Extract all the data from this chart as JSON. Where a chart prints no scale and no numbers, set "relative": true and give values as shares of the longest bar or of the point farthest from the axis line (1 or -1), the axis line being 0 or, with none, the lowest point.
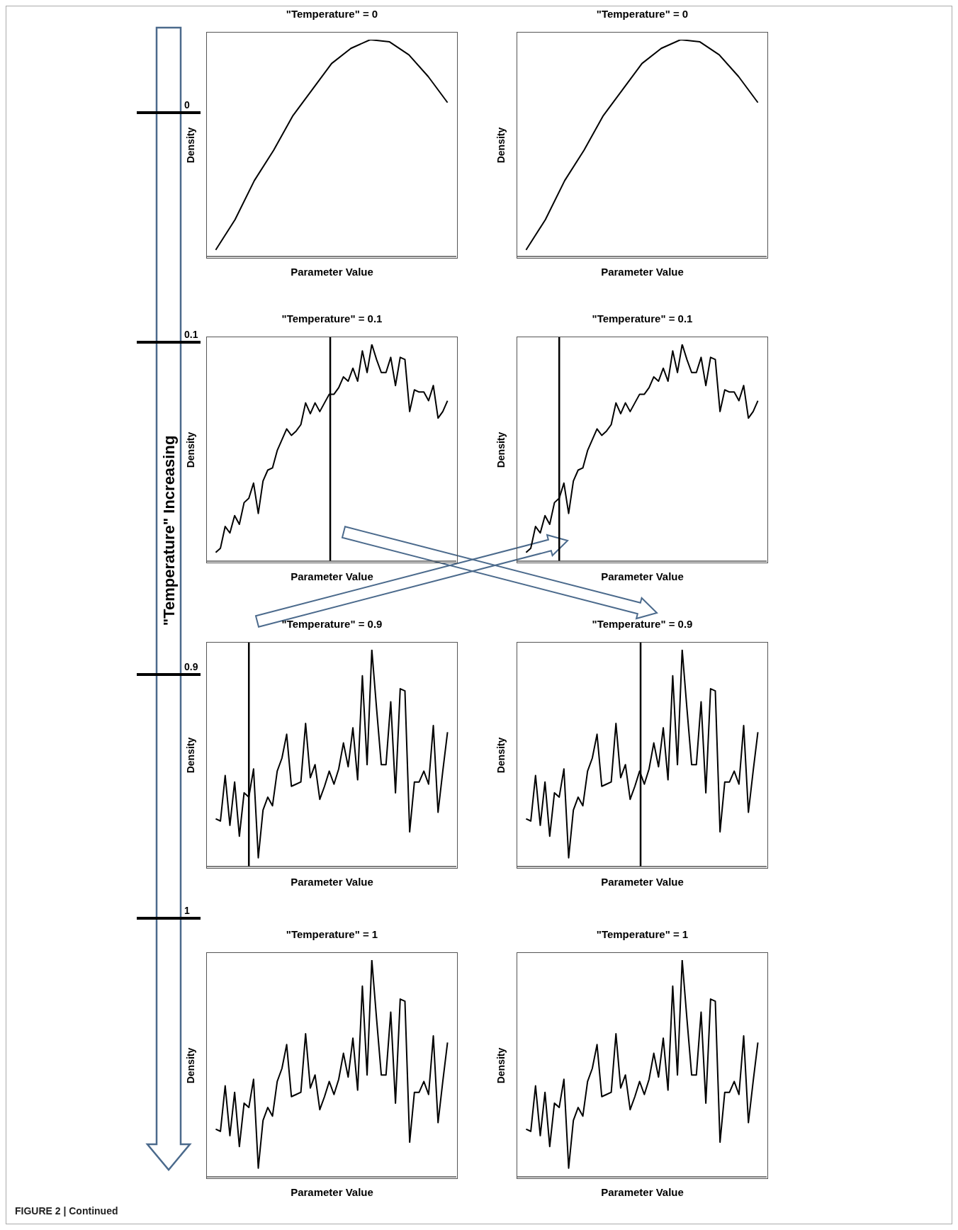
{
  "chart_data": [
    {
      "type": "other",
      "title": "\"Temperature\" Increasing",
      "annotations": [
        "0",
        "0.1",
        "0.9",
        "1",
        "FIGURE 2 | Continued"
      ]
    },
    {
      "type": "line",
      "title": "\"Temperature\" = 0",
      "xlabel": "Parameter Value",
      "ylabel": "Density",
      "relative": true,
      "categories": [
        null,
        null,
        null,
        null,
        null,
        null,
        null,
        null,
        null,
        null,
        null,
        null,
        null
      ],
      "series": [
        {
          "color": "#000000",
          "values": [
            0.03,
            0.17,
            0.35,
            0.49,
            0.65,
            0.77,
            0.89,
            0.96,
            1.0,
            0.99,
            0.93,
            0.83,
            0.71
          ]
        }
      ]
    },
    {
      "type": "line",
      "title": "\"Temperature\" = 0",
      "xlabel": "Parameter Value",
      "ylabel": "Density",
      "relative": true,
      "categories": [
        null,
        null,
        null,
        null,
        null,
        null,
        null,
        null,
        null,
        null,
        null,
        null,
        null
      ],
      "series": [
        {
          "color": "#000000",
          "values": [
            0.03,
            0.17,
            0.35,
            0.49,
            0.65,
            0.77,
            0.89,
            0.96,
            1.0,
            0.99,
            0.93,
            0.83,
            0.71
          ]
        }
      ]
    },
    {
      "type": "line",
      "title": "\"Temperature\" = 0.1",
      "xlabel": "Parameter Value",
      "ylabel": "Density",
      "relative": true,
      "categories": [
        null,
        null,
        null,
        null,
        null,
        null,
        null,
        null,
        null,
        null,
        null,
        null,
        null,
        null,
        null,
        null,
        null,
        null,
        null,
        null,
        null,
        null,
        null,
        null,
        null,
        null,
        null,
        null,
        null,
        null,
        null,
        null,
        null,
        null,
        null,
        null,
        null,
        null,
        null,
        null,
        null,
        null,
        null,
        null,
        null,
        null,
        null,
        null,
        null,
        null
      ],
      "series": [
        {
          "color": "#000000",
          "values": [
            0.04,
            0.06,
            0.16,
            0.13,
            0.21,
            0.17,
            0.27,
            0.29,
            0.36,
            0.22,
            0.37,
            0.42,
            0.43,
            0.51,
            0.56,
            0.61,
            0.58,
            0.6,
            0.63,
            0.73,
            0.68,
            0.73,
            0.69,
            0.73,
            0.77,
            0.77,
            0.8,
            0.85,
            0.83,
            0.89,
            0.83,
            0.97,
            0.87,
            1.0,
            0.93,
            0.87,
            0.87,
            0.94,
            0.81,
            0.94,
            0.93,
            0.69,
            0.79,
            0.78,
            0.78,
            0.74,
            0.81,
            0.66,
            0.69,
            0.74
          ]
        }
      ]
    },
    {
      "type": "line",
      "title": "\"Temperature\" = 0.1",
      "xlabel": "Parameter Value",
      "ylabel": "Density",
      "relative": true,
      "categories": [
        null,
        null,
        null,
        null,
        null,
        null,
        null,
        null,
        null,
        null,
        null,
        null,
        null,
        null,
        null,
        null,
        null,
        null,
        null,
        null,
        null,
        null,
        null,
        null,
        null,
        null,
        null,
        null,
        null,
        null,
        null,
        null,
        null,
        null,
        null,
        null,
        null,
        null,
        null,
        null,
        null,
        null,
        null,
        null,
        null,
        null,
        null,
        null,
        null,
        null
      ],
      "series": [
        {
          "color": "#000000",
          "values": [
            0.04,
            0.06,
            0.16,
            0.13,
            0.21,
            0.17,
            0.27,
            0.29,
            0.36,
            0.22,
            0.37,
            0.42,
            0.43,
            0.51,
            0.56,
            0.61,
            0.58,
            0.6,
            0.63,
            0.73,
            0.68,
            0.73,
            0.69,
            0.73,
            0.77,
            0.77,
            0.8,
            0.85,
            0.83,
            0.89,
            0.83,
            0.97,
            0.87,
            1.0,
            0.93,
            0.87,
            0.87,
            0.94,
            0.81,
            0.94,
            0.93,
            0.69,
            0.79,
            0.78,
            0.78,
            0.74,
            0.81,
            0.66,
            0.69,
            0.74
          ]
        }
      ]
    },
    {
      "type": "line",
      "title": "\"Temperature\" = 0.9",
      "xlabel": "Parameter Value",
      "ylabel": "Density",
      "relative": true,
      "categories": [
        null,
        null,
        null,
        null,
        null,
        null,
        null,
        null,
        null,
        null,
        null,
        null,
        null,
        null,
        null,
        null,
        null,
        null,
        null,
        null,
        null,
        null,
        null,
        null,
        null,
        null,
        null,
        null,
        null,
        null,
        null,
        null,
        null,
        null,
        null,
        null,
        null,
        null,
        null,
        null,
        null,
        null,
        null,
        null,
        null,
        null,
        null,
        null,
        null,
        null
      ],
      "series": [
        {
          "color": "#000000",
          "values": [
            0.22,
            0.21,
            0.42,
            0.19,
            0.39,
            0.14,
            0.34,
            0.32,
            0.45,
            0.04,
            0.26,
            0.32,
            0.28,
            0.44,
            0.5,
            0.61,
            0.37,
            0.38,
            0.39,
            0.66,
            0.41,
            0.47,
            0.31,
            0.37,
            0.44,
            0.38,
            0.45,
            0.57,
            0.46,
            0.64,
            0.4,
            0.88,
            0.47,
            1.0,
            0.73,
            0.47,
            0.47,
            0.76,
            0.34,
            0.82,
            0.81,
            0.16,
            0.39,
            0.39,
            0.44,
            0.38,
            0.65,
            0.25,
            0.44,
            0.62
          ]
        }
      ]
    },
    {
      "type": "line",
      "title": "\"Temperature\" = 0.9",
      "xlabel": "Parameter Value",
      "ylabel": "Density",
      "relative": true,
      "categories": [
        null,
        null,
        null,
        null,
        null,
        null,
        null,
        null,
        null,
        null,
        null,
        null,
        null,
        null,
        null,
        null,
        null,
        null,
        null,
        null,
        null,
        null,
        null,
        null,
        null,
        null,
        null,
        null,
        null,
        null,
        null,
        null,
        null,
        null,
        null,
        null,
        null,
        null,
        null,
        null,
        null,
        null,
        null,
        null,
        null,
        null,
        null,
        null,
        null,
        null
      ],
      "series": [
        {
          "color": "#000000",
          "values": [
            0.22,
            0.21,
            0.42,
            0.19,
            0.39,
            0.14,
            0.34,
            0.32,
            0.45,
            0.04,
            0.26,
            0.32,
            0.28,
            0.44,
            0.5,
            0.61,
            0.37,
            0.38,
            0.39,
            0.66,
            0.41,
            0.47,
            0.31,
            0.37,
            0.44,
            0.38,
            0.45,
            0.57,
            0.46,
            0.64,
            0.4,
            0.88,
            0.47,
            1.0,
            0.73,
            0.47,
            0.47,
            0.76,
            0.34,
            0.82,
            0.81,
            0.16,
            0.39,
            0.39,
            0.44,
            0.38,
            0.65,
            0.25,
            0.44,
            0.62
          ]
        }
      ]
    },
    {
      "type": "line",
      "title": "\"Temperature\" = 1",
      "xlabel": "Parameter Value",
      "ylabel": "Density",
      "relative": true,
      "categories": [
        null,
        null,
        null,
        null,
        null,
        null,
        null,
        null,
        null,
        null,
        null,
        null,
        null,
        null,
        null,
        null,
        null,
        null,
        null,
        null,
        null,
        null,
        null,
        null,
        null,
        null,
        null,
        null,
        null,
        null,
        null,
        null,
        null,
        null,
        null,
        null,
        null,
        null,
        null,
        null,
        null,
        null,
        null,
        null,
        null,
        null,
        null,
        null,
        null,
        null
      ],
      "series": [
        {
          "color": "#000000",
          "values": [
            0.22,
            0.21,
            0.42,
            0.19,
            0.39,
            0.14,
            0.34,
            0.32,
            0.45,
            0.04,
            0.26,
            0.32,
            0.28,
            0.44,
            0.5,
            0.61,
            0.37,
            0.38,
            0.39,
            0.66,
            0.41,
            0.47,
            0.31,
            0.37,
            0.44,
            0.38,
            0.45,
            0.57,
            0.46,
            0.64,
            0.4,
            0.88,
            0.47,
            1.0,
            0.73,
            0.47,
            0.47,
            0.76,
            0.34,
            0.82,
            0.81,
            0.16,
            0.39,
            0.39,
            0.44,
            0.38,
            0.65,
            0.25,
            0.44,
            0.62
          ]
        }
      ]
    },
    {
      "type": "line",
      "title": "\"Temperature\" = 1",
      "xlabel": "Parameter Value",
      "ylabel": "Density",
      "relative": true,
      "categories": [
        null,
        null,
        null,
        null,
        null,
        null,
        null,
        null,
        null,
        null,
        null,
        null,
        null,
        null,
        null,
        null,
        null,
        null,
        null,
        null,
        null,
        null,
        null,
        null,
        null,
        null,
        null,
        null,
        null,
        null,
        null,
        null,
        null,
        null,
        null,
        null,
        null,
        null,
        null,
        null,
        null,
        null,
        null,
        null,
        null,
        null,
        null,
        null,
        null,
        null
      ],
      "series": [
        {
          "color": "#000000",
          "values": [
            0.22,
            0.21,
            0.42,
            0.19,
            0.39,
            0.14,
            0.34,
            0.32,
            0.45,
            0.04,
            0.26,
            0.32,
            0.28,
            0.44,
            0.5,
            0.61,
            0.37,
            0.38,
            0.39,
            0.66,
            0.41,
            0.47,
            0.31,
            0.37,
            0.44,
            0.38,
            0.45,
            0.57,
            0.46,
            0.64,
            0.4,
            0.88,
            0.47,
            1.0,
            0.73,
            0.47,
            0.47,
            0.76,
            0.34,
            0.82,
            0.81,
            0.16,
            0.39,
            0.39,
            0.44,
            0.38,
            0.65,
            0.25,
            0.44,
            0.62
          ]
        }
      ]
    }
  ]
}
